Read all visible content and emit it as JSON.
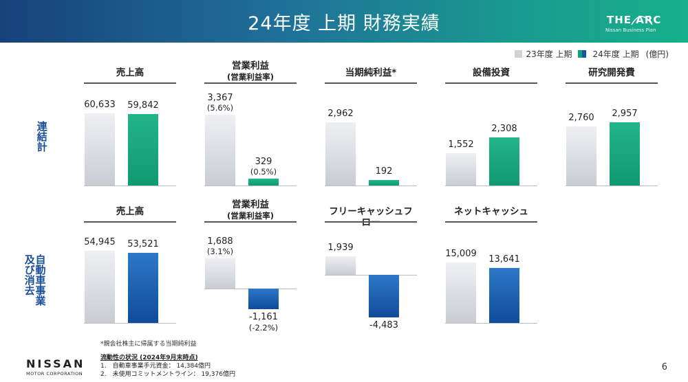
{
  "header": {
    "title": "24年度 上期 財務実績",
    "logo_name": "THE ARC",
    "logo_sub": "Nissan Business Plan"
  },
  "legend": {
    "items": [
      {
        "label": "23年度 上期",
        "color": "#cfd3d9"
      },
      {
        "label": "24年度 上期",
        "color": "#13a37a",
        "color2": "#1158a8"
      }
    ],
    "unit": "(億円)"
  },
  "side_labels": {
    "row1": "連結計",
    "row2": "自動車事業及び消去"
  },
  "chart_data": [
    {
      "type": "bar",
      "title": "売上高",
      "subtitle": "",
      "row": "連結計",
      "categories": [
        "23年度 上期",
        "24年度 上期"
      ],
      "values": [
        60633,
        59842
      ],
      "labels": [
        "60,633",
        "59,842"
      ],
      "pct": [
        "",
        ""
      ]
    },
    {
      "type": "bar",
      "title": "営業利益",
      "subtitle": "(営業利益率)",
      "row": "連結計",
      "categories": [
        "23年度 上期",
        "24年度 上期"
      ],
      "values": [
        3367,
        329
      ],
      "labels": [
        "3,367",
        "329"
      ],
      "pct": [
        "(5.6%)",
        "(0.5%)"
      ]
    },
    {
      "type": "bar",
      "title": "当期純利益*",
      "subtitle": "",
      "row": "連結計",
      "categories": [
        "23年度 上期",
        "24年度 上期"
      ],
      "values": [
        2962,
        192
      ],
      "labels": [
        "2,962",
        "192"
      ],
      "pct": [
        "",
        ""
      ]
    },
    {
      "type": "bar",
      "title": "設備投資",
      "subtitle": "",
      "row": "連結計",
      "categories": [
        "23年度 上期",
        "24年度 上期"
      ],
      "values": [
        1552,
        2308
      ],
      "labels": [
        "1,552",
        "2,308"
      ],
      "pct": [
        "",
        ""
      ]
    },
    {
      "type": "bar",
      "title": "研究開発費",
      "subtitle": "",
      "row": "連結計",
      "categories": [
        "23年度 上期",
        "24年度 上期"
      ],
      "values": [
        2760,
        2957
      ],
      "labels": [
        "2,760",
        "2,957"
      ],
      "pct": [
        "",
        ""
      ]
    },
    {
      "type": "bar",
      "title": "売上高",
      "subtitle": "",
      "row": "自動車事業及び消去",
      "categories": [
        "23年度 上期",
        "24年度 上期"
      ],
      "values": [
        54945,
        53521
      ],
      "labels": [
        "54,945",
        "53,521"
      ],
      "pct": [
        "",
        ""
      ]
    },
    {
      "type": "bar",
      "title": "営業利益",
      "subtitle": "(営業利益率)",
      "row": "自動車事業及び消去",
      "categories": [
        "23年度 上期",
        "24年度 上期"
      ],
      "values": [
        1688,
        -1161
      ],
      "labels": [
        "1,688",
        "-1,161"
      ],
      "pct": [
        "(3.1%)",
        "(-2.2%)"
      ]
    },
    {
      "type": "bar",
      "title": "フリーキャッシュフロー",
      "subtitle": "",
      "row": "自動車事業及び消去",
      "categories": [
        "23年度 上期",
        "24年度 上期"
      ],
      "values": [
        1939,
        -4483
      ],
      "labels": [
        "1,939",
        "-4,483"
      ],
      "pct": [
        "",
        ""
      ]
    },
    {
      "type": "bar",
      "title": "ネットキャッシュ",
      "subtitle": "",
      "row": "自動車事業及び消去",
      "categories": [
        "23年度 上期",
        "24年度 上期"
      ],
      "values": [
        15009,
        13641
      ],
      "labels": [
        "15,009",
        "13,641"
      ],
      "pct": [
        "",
        ""
      ]
    }
  ],
  "footnote": "*親会社株主に帰属する当期純利益",
  "brand": {
    "name": "NISSAN",
    "sub": "MOTOR CORPORATION"
  },
  "liquidity": {
    "title": "流動性の状況 (2024年9月末時点)",
    "lines": [
      "1.　自動車事業手元資金： 14,384億円",
      "2.　未使用コミットメントライン： 19,376億円"
    ]
  },
  "page_number": "6"
}
